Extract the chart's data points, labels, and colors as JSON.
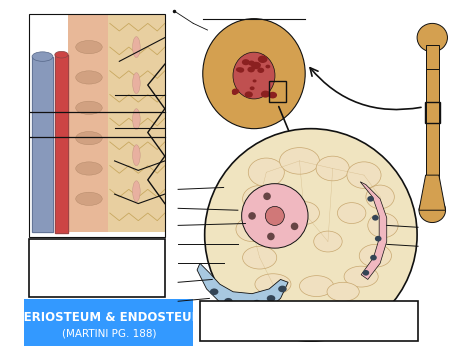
{
  "bg_color": "#ffffff",
  "title_text": "PERIOSTEUM & ENDOSTEUM",
  "subtitle_text": "(MARTINI PG. 188)",
  "title_bg": "#3399ff",
  "title_color": "#ffffff",
  "title_fontsize": 8.5,
  "subtitle_fontsize": 7.5,
  "bone_tan": "#D4A050",
  "bone_light": "#E8CFA0",
  "bone_outer": "#C8922A",
  "marrow_red": "#C05050",
  "marrow_dark": "#8B2020",
  "pink_osteon": "#E8A8B8",
  "pink_center": "#CC8888",
  "blue_endo": "#A8C8E0",
  "skin_color": "#E8B898",
  "muscle_color": "#D89878",
  "tissue_color": "#E8C8A0",
  "red_vessel": "#CC4444",
  "blue_vessel": "#8899BB",
  "dark_line": "#111111",
  "cell_fill": "#F0E0C0",
  "cell_edge": "#C8A870"
}
